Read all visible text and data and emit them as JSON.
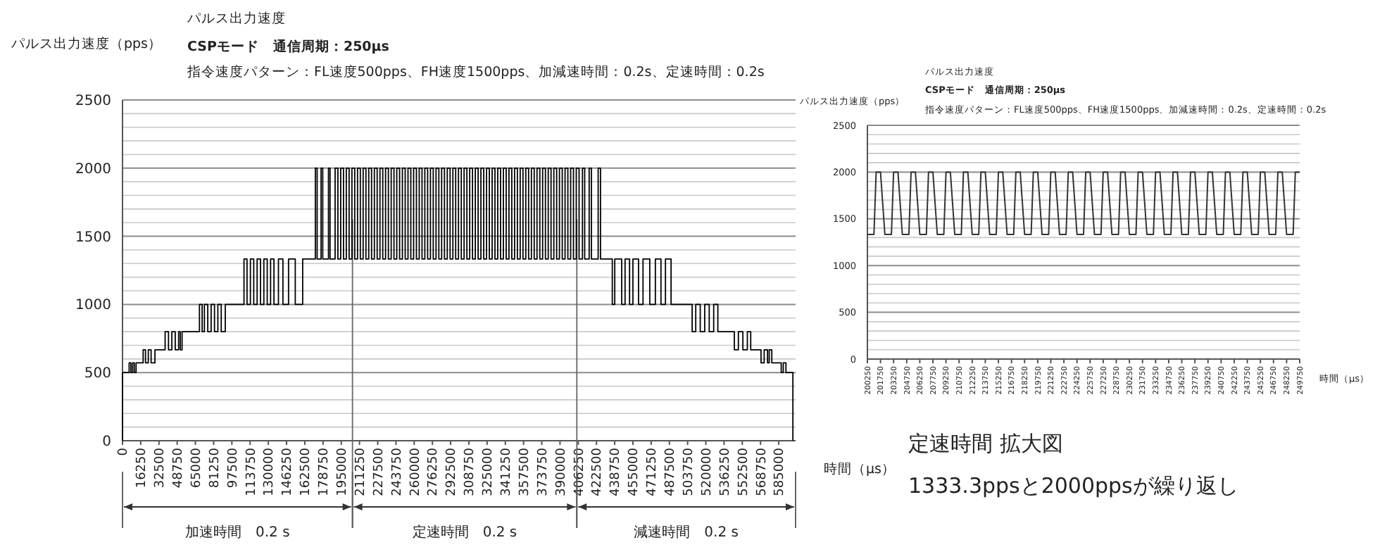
{
  "chart_data": [
    {
      "type": "step",
      "title": "パルス出力速度",
      "subtitle": "CSPモード　通信周期：250μs",
      "ylabel": "パルス出力速度（pps）",
      "xlabel": "時間（μs）",
      "annotations": [
        "指令速度パターン：FL速度500pps、FH速度1500pps、加減速時間：0.2s、定速時間：0.2s",
        "加速時間　0.2 s",
        "定速時間　0.2 s",
        "減速時間　0.2 s"
      ],
      "xlim": [
        0,
        600000
      ],
      "xticks": [
        0,
        16250,
        32500,
        48750,
        65000,
        81250,
        97500,
        113750,
        130000,
        146250,
        162500,
        178750,
        195000,
        211250,
        227500,
        243750,
        260000,
        276250,
        292500,
        308750,
        325000,
        341250,
        357500,
        373750,
        390000,
        406250,
        422500,
        438750,
        455000,
        471250,
        487500,
        503750,
        520000,
        536250,
        552500,
        568750,
        585000
      ],
      "ylim": [
        0,
        2500
      ],
      "yticks": [
        0,
        {
          "value": 100,
          "label": null
        },
        {
          "value": 200,
          "label": null
        },
        {
          "value": 300,
          "label": null
        },
        {
          "value": 400,
          "label": null
        },
        500,
        {
          "value": 600,
          "label": null
        },
        {
          "value": 700,
          "label": null
        },
        {
          "value": 800,
          "label": null
        },
        {
          "value": 900,
          "label": null
        },
        1000,
        {
          "value": 1100,
          "label": null
        },
        {
          "value": 1200,
          "label": null
        },
        {
          "value": 1300,
          "label": null
        },
        {
          "value": 1400,
          "label": null
        },
        1500,
        {
          "value": 1600,
          "label": null
        },
        {
          "value": 1700,
          "label": null
        },
        {
          "value": 1800,
          "label": null
        },
        {
          "value": 1900,
          "label": null
        },
        2000,
        {
          "value": 2100,
          "label": null
        },
        {
          "value": 2200,
          "label": null
        },
        {
          "value": 2300,
          "label": null
        },
        {
          "value": 2400,
          "label": null
        },
        2500
      ],
      "grid": "y",
      "ref_lines": [
        {
          "axis": "x",
          "value": 205000,
          "color": "#666666"
        },
        {
          "axis": "x",
          "value": 405000,
          "color": "#666666"
        }
      ],
      "series": [
        {
          "color": "#000000",
          "x": [
            0,
            0,
            5900,
            7500,
            9000,
            10500,
            12100,
            18400,
            20500,
            23000,
            25500,
            28900,
            38000,
            41000,
            44000,
            47000,
            50000,
            51500,
            53100,
            68600,
            71000,
            73000,
            76000,
            79000,
            82000,
            85000,
            88000,
            91600,
            108300,
            111000,
            114000,
            117000,
            120000,
            123000,
            126000,
            129000,
            132000,
            135000,
            139000,
            143000,
            148000,
            154000,
            160600,
            171900,
            173500,
            177000,
            178500,
            183600,
            185000,
            189500,
            192000,
            194500,
            197000,
            199500,
            202000,
            204500,
            207000,
            209500,
            212000,
            214500,
            217000,
            219500,
            222000,
            224500,
            227000,
            229500,
            232000,
            234500,
            237000,
            239500,
            242000,
            244500,
            247000,
            249500,
            252000,
            254500,
            257000,
            259500,
            262000,
            264500,
            267000,
            269500,
            272000,
            274500,
            277000,
            279500,
            282000,
            284500,
            287000,
            289500,
            292000,
            294500,
            297000,
            299500,
            302000,
            304500,
            307000,
            309500,
            312000,
            314500,
            317000,
            319500,
            322000,
            324500,
            327000,
            329500,
            332000,
            334500,
            337000,
            339500,
            342000,
            344500,
            347000,
            349500,
            352000,
            354500,
            357000,
            359500,
            362000,
            364500,
            367000,
            369500,
            372000,
            374500,
            377000,
            379500,
            382000,
            384500,
            387000,
            389500,
            392000,
            394500,
            397000,
            399500,
            402000,
            404500,
            407000,
            410000,
            412000,
            416000,
            418000,
            424000,
            426100,
            436600,
            438800,
            445000,
            448000,
            452000,
            455000,
            460000,
            464000,
            470000,
            475000,
            480000,
            484000,
            489000,
            507800,
            511000,
            515000,
            519000,
            523000,
            527000,
            530700,
            545400,
            549000,
            553000,
            557000,
            560000,
            569200,
            572000,
            575000,
            576500,
            578800,
            587200,
            589000,
            591400,
            597600
          ],
          "values": [
            0,
            500,
            571,
            500,
            571,
            500,
            571,
            667,
            571,
            667,
            571,
            667,
            800,
            667,
            800,
            667,
            800,
            667,
            800,
            1000,
            800,
            1000,
            800,
            1000,
            800,
            1000,
            800,
            1000,
            1333,
            1000,
            1333,
            1000,
            1333,
            1000,
            1333,
            1000,
            1333,
            1000,
            1333,
            1000,
            1333,
            1000,
            1333,
            2000,
            1333,
            2000,
            1333,
            2000,
            1333,
            2000,
            1333,
            2000,
            1333,
            2000,
            1333,
            2000,
            1333,
            2000,
            1333,
            2000,
            1333,
            2000,
            1333,
            2000,
            1333,
            2000,
            1333,
            2000,
            1333,
            2000,
            1333,
            2000,
            1333,
            2000,
            1333,
            2000,
            1333,
            2000,
            1333,
            2000,
            1333,
            2000,
            1333,
            2000,
            1333,
            2000,
            1333,
            2000,
            1333,
            2000,
            1333,
            2000,
            1333,
            2000,
            1333,
            2000,
            1333,
            2000,
            1333,
            2000,
            1333,
            2000,
            1333,
            2000,
            1333,
            2000,
            1333,
            2000,
            1333,
            2000,
            1333,
            2000,
            1333,
            2000,
            1333,
            2000,
            1333,
            2000,
            1333,
            2000,
            1333,
            2000,
            1333,
            2000,
            1333,
            2000,
            1333,
            2000,
            1333,
            2000,
            1333,
            2000,
            1333,
            2000,
            1333,
            2000,
            1333,
            2000,
            1333,
            2000,
            1333,
            2000,
            1333,
            1000,
            1333,
            1000,
            1333,
            1000,
            1333,
            1000,
            1333,
            1000,
            1333,
            1000,
            1333,
            1000,
            800,
            1000,
            800,
            1000,
            800,
            1000,
            800,
            667,
            800,
            667,
            800,
            667,
            571,
            667,
            571,
            667,
            571,
            500,
            571,
            500,
            0
          ]
        }
      ]
    },
    {
      "type": "line",
      "title": "パルス出力速度",
      "subtitle": "CSPモード　通信周期：250μs",
      "ylabel": "パルス出力速度（pps）",
      "xlabel": "時間（μs）",
      "annotations": [
        "指令速度パターン：FL速度500pps、FH速度1500pps、加減速時間：0.2s、定速時間：0.2s",
        "定速時間  拡大図",
        "1333.3ppsと2000ppsが繰り返し"
      ],
      "xlim": [
        200250,
        249750
      ],
      "xticks": [
        200250,
        201750,
        203250,
        204750,
        206250,
        207750,
        209250,
        210750,
        212250,
        213750,
        215250,
        216750,
        218250,
        219750,
        221250,
        222750,
        224250,
        225750,
        227250,
        228750,
        230250,
        231750,
        233250,
        234750,
        236250,
        237750,
        239250,
        240750,
        242250,
        243750,
        245250,
        246750,
        248250,
        249750
      ],
      "ylim": [
        0,
        2500
      ],
      "yticks": [
        0,
        {
          "value": 100,
          "label": null
        },
        {
          "value": 200,
          "label": null
        },
        {
          "value": 300,
          "label": null
        },
        {
          "value": 400,
          "label": null
        },
        500,
        {
          "value": 600,
          "label": null
        },
        {
          "value": 700,
          "label": null
        },
        {
          "value": 800,
          "label": null
        },
        {
          "value": 900,
          "label": null
        },
        1000,
        {
          "value": 1100,
          "label": null
        },
        {
          "value": 1200,
          "label": null
        },
        {
          "value": 1300,
          "label": null
        },
        {
          "value": 1400,
          "label": null
        },
        1500,
        {
          "value": 1600,
          "label": null
        },
        {
          "value": 1700,
          "label": null
        },
        {
          "value": 1800,
          "label": null
        },
        {
          "value": 1900,
          "label": null
        },
        2000,
        {
          "value": 2100,
          "label": null
        },
        {
          "value": 2200,
          "label": null
        },
        {
          "value": 2300,
          "label": null
        },
        {
          "value": 2400,
          "label": null
        },
        2500
      ],
      "grid": "y",
      "series": [
        {
          "color": "#333333",
          "x": [
            200250,
            201000,
            201250,
            201750,
            202250,
            203000,
            203250,
            203750,
            204250,
            205000,
            205250,
            205750,
            206250,
            207000,
            207250,
            207750,
            208250,
            209000,
            209250,
            209750,
            210250,
            211000,
            211250,
            211750,
            212250,
            213000,
            213250,
            213750,
            214250,
            215000,
            215250,
            215750,
            216250,
            217000,
            217250,
            217750,
            218250,
            219000,
            219250,
            219750,
            220250,
            221000,
            221250,
            221750,
            222250,
            223000,
            223250,
            223750,
            224250,
            225000,
            225250,
            225750,
            226250,
            227000,
            227250,
            227750,
            228250,
            229000,
            229250,
            229750,
            230250,
            231000,
            231250,
            231750,
            232250,
            233000,
            233250,
            233750,
            234250,
            235000,
            235250,
            235750,
            236250,
            237000,
            237250,
            237750,
            238250,
            239000,
            239250,
            239750,
            240250,
            241000,
            241250,
            241750,
            242250,
            243000,
            243250,
            243750,
            244250,
            245000,
            245250,
            245750,
            246250,
            247000,
            247250,
            247750,
            248250,
            249000,
            249250,
            249750
          ],
          "values": [
            1333,
            1333,
            2000,
            2000,
            1333,
            1333,
            2000,
            2000,
            1333,
            1333,
            2000,
            2000,
            1333,
            1333,
            2000,
            2000,
            1333,
            1333,
            2000,
            2000,
            1333,
            1333,
            2000,
            2000,
            1333,
            1333,
            2000,
            2000,
            1333,
            1333,
            2000,
            2000,
            1333,
            1333,
            2000,
            2000,
            1333,
            1333,
            2000,
            2000,
            1333,
            1333,
            2000,
            2000,
            1333,
            1333,
            2000,
            2000,
            1333,
            1333,
            2000,
            2000,
            1333,
            1333,
            2000,
            2000,
            1333,
            1333,
            2000,
            2000,
            1333,
            1333,
            2000,
            2000,
            1333,
            1333,
            2000,
            2000,
            1333,
            1333,
            2000,
            2000,
            1333,
            1333,
            2000,
            2000,
            1333,
            1333,
            2000,
            2000,
            1333,
            1333,
            2000,
            2000,
            1333,
            1333,
            2000,
            2000,
            1333,
            1333,
            2000,
            2000,
            1333,
            1333,
            2000,
            2000,
            1333,
            1333,
            2000,
            2000
          ]
        }
      ]
    }
  ]
}
